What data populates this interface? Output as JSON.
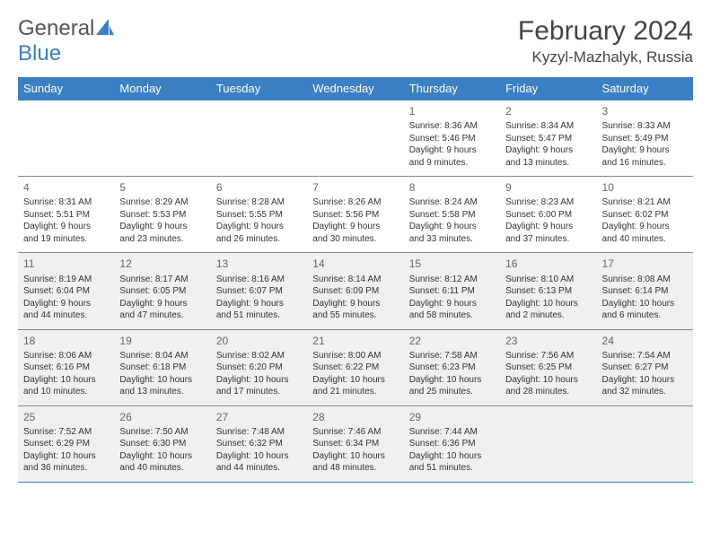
{
  "brand": {
    "part1": "General",
    "part2": "Blue"
  },
  "title": "February 2024",
  "location": "Kyzyl-Mazhalyk, Russia",
  "colors": {
    "header_bg": "#3b7fc4",
    "header_fg": "#ffffff",
    "row_border": "#3b7fc4",
    "shade_bg": "#f0f0f0",
    "text": "#333333"
  },
  "day_headers": [
    "Sunday",
    "Monday",
    "Tuesday",
    "Wednesday",
    "Thursday",
    "Friday",
    "Saturday"
  ],
  "weeks": [
    [
      {
        "blank": true
      },
      {
        "blank": true
      },
      {
        "blank": true
      },
      {
        "blank": true
      },
      {
        "day": "1",
        "sunrise": "8:36 AM",
        "sunset": "5:46 PM",
        "daylight1": "Daylight: 9 hours",
        "daylight2": "and 9 minutes."
      },
      {
        "day": "2",
        "sunrise": "8:34 AM",
        "sunset": "5:47 PM",
        "daylight1": "Daylight: 9 hours",
        "daylight2": "and 13 minutes."
      },
      {
        "day": "3",
        "sunrise": "8:33 AM",
        "sunset": "5:49 PM",
        "daylight1": "Daylight: 9 hours",
        "daylight2": "and 16 minutes."
      }
    ],
    [
      {
        "day": "4",
        "sunrise": "8:31 AM",
        "sunset": "5:51 PM",
        "daylight1": "Daylight: 9 hours",
        "daylight2": "and 19 minutes."
      },
      {
        "day": "5",
        "sunrise": "8:29 AM",
        "sunset": "5:53 PM",
        "daylight1": "Daylight: 9 hours",
        "daylight2": "and 23 minutes."
      },
      {
        "day": "6",
        "sunrise": "8:28 AM",
        "sunset": "5:55 PM",
        "daylight1": "Daylight: 9 hours",
        "daylight2": "and 26 minutes."
      },
      {
        "day": "7",
        "sunrise": "8:26 AM",
        "sunset": "5:56 PM",
        "daylight1": "Daylight: 9 hours",
        "daylight2": "and 30 minutes."
      },
      {
        "day": "8",
        "sunrise": "8:24 AM",
        "sunset": "5:58 PM",
        "daylight1": "Daylight: 9 hours",
        "daylight2": "and 33 minutes."
      },
      {
        "day": "9",
        "sunrise": "8:23 AM",
        "sunset": "6:00 PM",
        "daylight1": "Daylight: 9 hours",
        "daylight2": "and 37 minutes."
      },
      {
        "day": "10",
        "sunrise": "8:21 AM",
        "sunset": "6:02 PM",
        "daylight1": "Daylight: 9 hours",
        "daylight2": "and 40 minutes."
      }
    ],
    [
      {
        "day": "11",
        "sunrise": "8:19 AM",
        "sunset": "6:04 PM",
        "daylight1": "Daylight: 9 hours",
        "daylight2": "and 44 minutes.",
        "shade": true
      },
      {
        "day": "12",
        "sunrise": "8:17 AM",
        "sunset": "6:05 PM",
        "daylight1": "Daylight: 9 hours",
        "daylight2": "and 47 minutes.",
        "shade": true
      },
      {
        "day": "13",
        "sunrise": "8:16 AM",
        "sunset": "6:07 PM",
        "daylight1": "Daylight: 9 hours",
        "daylight2": "and 51 minutes.",
        "shade": true
      },
      {
        "day": "14",
        "sunrise": "8:14 AM",
        "sunset": "6:09 PM",
        "daylight1": "Daylight: 9 hours",
        "daylight2": "and 55 minutes.",
        "shade": true
      },
      {
        "day": "15",
        "sunrise": "8:12 AM",
        "sunset": "6:11 PM",
        "daylight1": "Daylight: 9 hours",
        "daylight2": "and 58 minutes.",
        "shade": true
      },
      {
        "day": "16",
        "sunrise": "8:10 AM",
        "sunset": "6:13 PM",
        "daylight1": "Daylight: 10 hours",
        "daylight2": "and 2 minutes.",
        "shade": true
      },
      {
        "day": "17",
        "sunrise": "8:08 AM",
        "sunset": "6:14 PM",
        "daylight1": "Daylight: 10 hours",
        "daylight2": "and 6 minutes.",
        "shade": true
      }
    ],
    [
      {
        "day": "18",
        "sunrise": "8:06 AM",
        "sunset": "6:16 PM",
        "daylight1": "Daylight: 10 hours",
        "daylight2": "and 10 minutes.",
        "shade": true
      },
      {
        "day": "19",
        "sunrise": "8:04 AM",
        "sunset": "6:18 PM",
        "daylight1": "Daylight: 10 hours",
        "daylight2": "and 13 minutes.",
        "shade": true
      },
      {
        "day": "20",
        "sunrise": "8:02 AM",
        "sunset": "6:20 PM",
        "daylight1": "Daylight: 10 hours",
        "daylight2": "and 17 minutes.",
        "shade": true
      },
      {
        "day": "21",
        "sunrise": "8:00 AM",
        "sunset": "6:22 PM",
        "daylight1": "Daylight: 10 hours",
        "daylight2": "and 21 minutes.",
        "shade": true
      },
      {
        "day": "22",
        "sunrise": "7:58 AM",
        "sunset": "6:23 PM",
        "daylight1": "Daylight: 10 hours",
        "daylight2": "and 25 minutes.",
        "shade": true
      },
      {
        "day": "23",
        "sunrise": "7:56 AM",
        "sunset": "6:25 PM",
        "daylight1": "Daylight: 10 hours",
        "daylight2": "and 28 minutes.",
        "shade": true
      },
      {
        "day": "24",
        "sunrise": "7:54 AM",
        "sunset": "6:27 PM",
        "daylight1": "Daylight: 10 hours",
        "daylight2": "and 32 minutes.",
        "shade": true
      }
    ],
    [
      {
        "day": "25",
        "sunrise": "7:52 AM",
        "sunset": "6:29 PM",
        "daylight1": "Daylight: 10 hours",
        "daylight2": "and 36 minutes.",
        "shade": true
      },
      {
        "day": "26",
        "sunrise": "7:50 AM",
        "sunset": "6:30 PM",
        "daylight1": "Daylight: 10 hours",
        "daylight2": "and 40 minutes.",
        "shade": true
      },
      {
        "day": "27",
        "sunrise": "7:48 AM",
        "sunset": "6:32 PM",
        "daylight1": "Daylight: 10 hours",
        "daylight2": "and 44 minutes.",
        "shade": true
      },
      {
        "day": "28",
        "sunrise": "7:46 AM",
        "sunset": "6:34 PM",
        "daylight1": "Daylight: 10 hours",
        "daylight2": "and 48 minutes.",
        "shade": true
      },
      {
        "day": "29",
        "sunrise": "7:44 AM",
        "sunset": "6:36 PM",
        "daylight1": "Daylight: 10 hours",
        "daylight2": "and 51 minutes.",
        "shade": true
      },
      {
        "blank": true,
        "shade": true
      },
      {
        "blank": true,
        "shade": true
      }
    ]
  ]
}
